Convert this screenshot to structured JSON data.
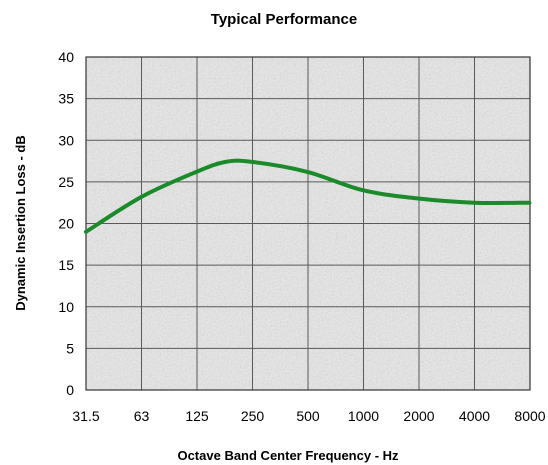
{
  "chart_data": {
    "type": "line",
    "title": "Typical Performance",
    "xlabel": "Octave Band Center Frequency - Hz",
    "ylabel": "Dynamic Insertion Loss - dB",
    "x_scale": "log2",
    "categories": [
      "31.5",
      "63",
      "125",
      "250",
      "500",
      "1000",
      "2000",
      "4000",
      "8000"
    ],
    "y_ticks": [
      "0",
      "5",
      "10",
      "15",
      "20",
      "25",
      "30",
      "35",
      "40"
    ],
    "ylim": [
      0,
      40
    ],
    "grid": true,
    "legend": "none",
    "series": [
      {
        "color": "#1a8a2a",
        "points": [
          {
            "x": 31.5,
            "y": 19
          },
          {
            "x": 63,
            "y": 23.2
          },
          {
            "x": 125,
            "y": 26.2
          },
          {
            "x": 180,
            "y": 27.4
          },
          {
            "x": 250,
            "y": 27.4
          },
          {
            "x": 500,
            "y": 26.2
          },
          {
            "x": 1000,
            "y": 24
          },
          {
            "x": 2000,
            "y": 23
          },
          {
            "x": 4000,
            "y": 22.5
          },
          {
            "x": 8000,
            "y": 22.5
          }
        ]
      }
    ]
  },
  "colors": {
    "plot_background": "#e9e9e9",
    "grid": "#5a5a5a",
    "line": "#1a8a2a"
  }
}
